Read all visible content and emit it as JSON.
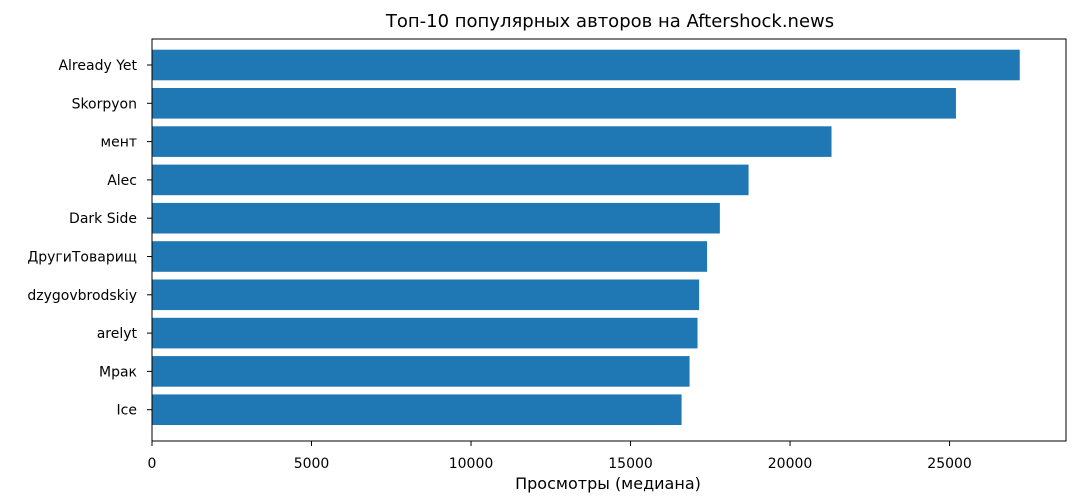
{
  "chart_data": {
    "type": "bar",
    "orientation": "horizontal",
    "title": "Топ-10 популярных авторов на Aftershock.news",
    "xlabel": "Просмотры (медиана)",
    "ylabel": "",
    "xlim": [
      0,
      28650
    ],
    "x_ticks": [
      0,
      5000,
      10000,
      15000,
      20000,
      25000
    ],
    "grid": false,
    "bar_color": "#1f77b4",
    "categories": [
      "Already Yet",
      "Skorpyon",
      "мент",
      "Alec",
      "Dark Side",
      "ДругиТоварищ",
      "dzygovbrodskiy",
      "arelyt",
      "Мрак",
      "Ice"
    ],
    "values": [
      27200,
      25200,
      21300,
      18700,
      17800,
      17400,
      17150,
      17100,
      16850,
      16600
    ]
  }
}
